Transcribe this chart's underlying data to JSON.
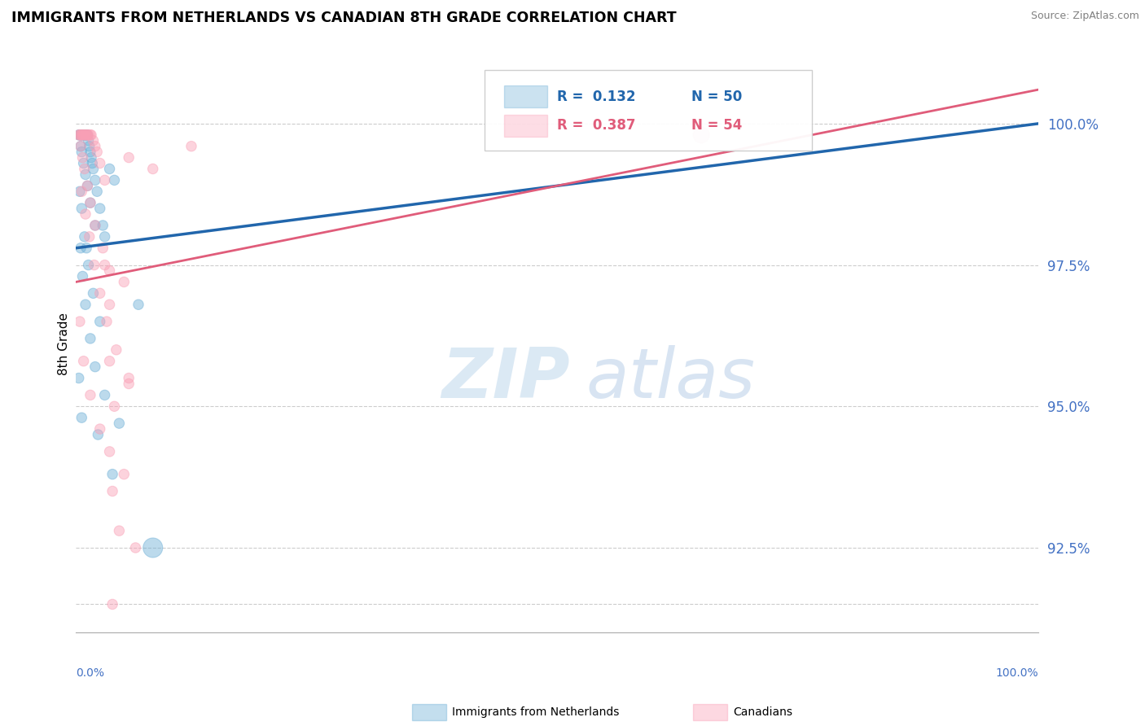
{
  "title": "IMMIGRANTS FROM NETHERLANDS VS CANADIAN 8TH GRADE CORRELATION CHART",
  "source": "Source: ZipAtlas.com",
  "ylabel": "8th Grade",
  "yticks": [
    91.5,
    92.5,
    95.0,
    97.5,
    100.0
  ],
  "ytick_labels": [
    "",
    "92.5%",
    "95.0%",
    "97.5%",
    "100.0%"
  ],
  "xlim": [
    0.0,
    100.0
  ],
  "ylim": [
    91.0,
    101.2
  ],
  "legend_blue_R": "R =  0.132",
  "legend_blue_N": "N = 50",
  "legend_pink_R": "R =  0.387",
  "legend_pink_N": "N = 54",
  "blue_color": "#6baed6",
  "pink_color": "#fa9fb5",
  "blue_line_color": "#2166ac",
  "pink_line_color": "#e05c7a",
  "watermark_zip": "ZIP",
  "watermark_atlas": "atlas",
  "blue_line_x0": 0,
  "blue_line_y0": 97.8,
  "blue_line_x1": 100,
  "blue_line_y1": 100.0,
  "pink_line_x0": 0,
  "pink_line_y0": 97.2,
  "pink_line_x1": 100,
  "pink_line_y1": 100.6,
  "blue_scatter_x": [
    0.3,
    0.4,
    0.5,
    0.6,
    0.7,
    0.8,
    0.9,
    1.0,
    1.1,
    1.2,
    1.3,
    1.4,
    1.5,
    1.6,
    1.7,
    1.8,
    2.0,
    2.2,
    2.5,
    2.8,
    3.0,
    3.5,
    4.0,
    0.5,
    0.6,
    0.8,
    1.0,
    1.2,
    1.5,
    2.0,
    0.4,
    0.6,
    0.9,
    1.3,
    1.8,
    2.5,
    0.5,
    0.7,
    1.0,
    1.5,
    2.0,
    3.0,
    4.5,
    6.5,
    0.3,
    0.6,
    1.1,
    2.3,
    3.8,
    8.0
  ],
  "blue_scatter_y": [
    99.8,
    99.8,
    99.8,
    99.8,
    99.8,
    99.8,
    99.8,
    99.8,
    99.8,
    99.8,
    99.7,
    99.6,
    99.5,
    99.4,
    99.3,
    99.2,
    99.0,
    98.8,
    98.5,
    98.2,
    98.0,
    99.2,
    99.0,
    99.6,
    99.5,
    99.3,
    99.1,
    98.9,
    98.6,
    98.2,
    98.8,
    98.5,
    98.0,
    97.5,
    97.0,
    96.5,
    97.8,
    97.3,
    96.8,
    96.2,
    95.7,
    95.2,
    94.7,
    96.8,
    95.5,
    94.8,
    97.8,
    94.5,
    93.8,
    92.5
  ],
  "blue_scatter_size": [
    80,
    80,
    80,
    80,
    80,
    80,
    80,
    80,
    80,
    80,
    80,
    80,
    80,
    80,
    80,
    80,
    80,
    80,
    80,
    80,
    80,
    80,
    80,
    80,
    80,
    80,
    80,
    80,
    80,
    80,
    80,
    80,
    80,
    80,
    80,
    80,
    80,
    80,
    80,
    80,
    80,
    80,
    80,
    80,
    80,
    80,
    80,
    80,
    80,
    300
  ],
  "pink_scatter_x": [
    0.3,
    0.4,
    0.5,
    0.6,
    0.7,
    0.8,
    0.9,
    1.0,
    1.1,
    1.2,
    1.3,
    1.5,
    1.6,
    1.8,
    2.0,
    2.2,
    2.5,
    3.0,
    0.5,
    0.7,
    0.9,
    1.2,
    1.5,
    2.0,
    2.8,
    3.5,
    0.6,
    1.0,
    1.4,
    1.9,
    2.5,
    3.2,
    4.2,
    5.5,
    3.0,
    5.0,
    3.5,
    5.5,
    8.0,
    12.0,
    0.4,
    0.8,
    1.5,
    2.5,
    4.0,
    3.5,
    5.0,
    3.8,
    4.5,
    6.2,
    3.5,
    5.5,
    3.8,
    65.0
  ],
  "pink_scatter_y": [
    99.8,
    99.8,
    99.8,
    99.8,
    99.8,
    99.8,
    99.8,
    99.8,
    99.8,
    99.8,
    99.8,
    99.8,
    99.8,
    99.7,
    99.6,
    99.5,
    99.3,
    99.0,
    99.6,
    99.4,
    99.2,
    98.9,
    98.6,
    98.2,
    97.8,
    97.4,
    98.8,
    98.4,
    98.0,
    97.5,
    97.0,
    96.5,
    96.0,
    95.5,
    97.5,
    97.2,
    96.8,
    99.4,
    99.2,
    99.6,
    96.5,
    95.8,
    95.2,
    94.6,
    95.0,
    94.2,
    93.8,
    93.5,
    92.8,
    92.5,
    95.8,
    95.4,
    91.5,
    99.8
  ],
  "pink_scatter_size": [
    80,
    80,
    80,
    80,
    80,
    80,
    80,
    80,
    80,
    80,
    80,
    80,
    80,
    80,
    80,
    80,
    80,
    80,
    80,
    80,
    80,
    80,
    80,
    80,
    80,
    80,
    80,
    80,
    80,
    80,
    80,
    80,
    80,
    80,
    80,
    80,
    80,
    80,
    80,
    80,
    80,
    80,
    80,
    80,
    80,
    80,
    80,
    80,
    80,
    80,
    80,
    80,
    80,
    200
  ]
}
